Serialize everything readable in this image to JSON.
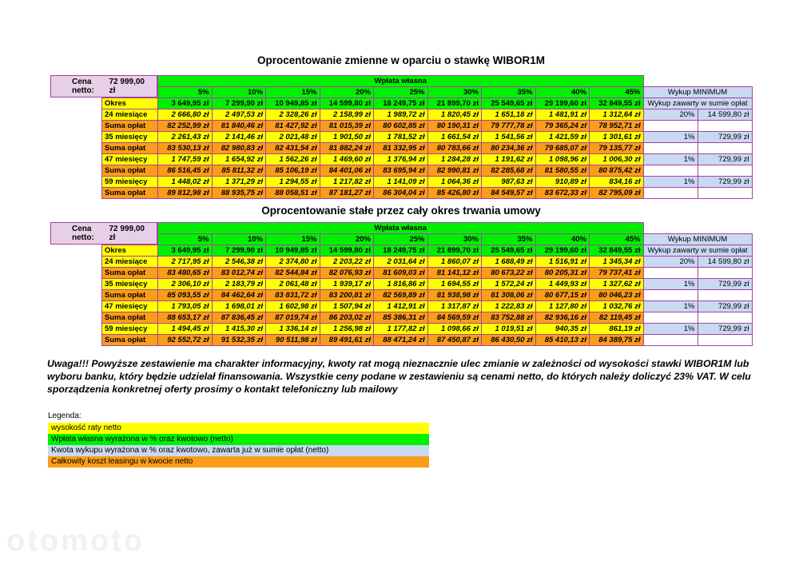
{
  "colors": {
    "green": "#00f000",
    "yellow": "#ffff00",
    "orange": "#fb9d18",
    "blue": "#c9d9f1",
    "pink": "#e8cfe8",
    "border": "#a442a4"
  },
  "tables": [
    {
      "title": "Oprocentowanie zmienne w oparciu o stawkę WIBOR1M",
      "cena_netto_label": "Cena netto:",
      "cena_netto_value": "72 999,00 zł",
      "wplata_wlasna_label": "Wpłata własna",
      "wykup_header": "Wykup MINIMUM",
      "wykup_subheader": "Wykup zawarty w sumie opłat",
      "percent_headers": [
        "5%",
        "10%",
        "15%",
        "20%",
        "25%",
        "30%",
        "35%",
        "40%",
        "45%"
      ],
      "okres_label": "Okres",
      "okres_values": [
        "3 649,95 zł",
        "7 299,90 zł",
        "10 949,85 zł",
        "14 599,80 zł",
        "18 249,75 zł",
        "21 899,70 zł",
        "25 549,65 zł",
        "29 199,60 zł",
        "32 849,55 zł"
      ],
      "rows": [
        {
          "type": "rate",
          "label": "24 miesiące",
          "values": [
            "2 666,80 zł",
            "2 497,53 zł",
            "2 328,26 zł",
            "2 158,99 zł",
            "1 989,72 zł",
            "1 820,45 zł",
            "1 651,18 zł",
            "1 481,91 zł",
            "1 312,64 zł"
          ],
          "wykup_pct": "20%",
          "wykup_amount": "14 599,80 zł"
        },
        {
          "type": "suma",
          "label": "Suma opłat",
          "values": [
            "82 252,99 zł",
            "81 840,46 zł",
            "81 427,92 zł",
            "81 015,39 zł",
            "80 602,85 zł",
            "80 190,31 zł",
            "79 777,78 zł",
            "79 365,24 zł",
            "78 952,71 zł"
          ]
        },
        {
          "type": "rate",
          "label": "35 miesięcy",
          "values": [
            "2 261,43 zł",
            "2 141,46 zł",
            "2 021,48 zł",
            "1 901,50 zł",
            "1 781,52 zł",
            "1 661,54 zł",
            "1 541,56 zł",
            "1 421,59 zł",
            "1 301,61 zł"
          ],
          "wykup_pct": "1%",
          "wykup_amount": "729,99 zł"
        },
        {
          "type": "suma",
          "label": "Suma opłat",
          "values": [
            "83 530,13 zł",
            "82 980,83 zł",
            "82 431,54 zł",
            "81 882,24 zł",
            "81 332,95 zł",
            "80 783,66 zł",
            "80 234,36 zł",
            "79 685,07 zł",
            "79 135,77 zł"
          ]
        },
        {
          "type": "rate",
          "label": "47 miesięcy",
          "values": [
            "1 747,59 zł",
            "1 654,92 zł",
            "1 562,26 zł",
            "1 469,60 zł",
            "1 376,94 zł",
            "1 284,28 zł",
            "1 191,62 zł",
            "1 098,96 zł",
            "1 006,30 zł"
          ],
          "wykup_pct": "1%",
          "wykup_amount": "729,99 zł"
        },
        {
          "type": "suma",
          "label": "Suma opłat",
          "values": [
            "86 516,45 zł",
            "85 811,32 zł",
            "85 106,19 zł",
            "84 401,06 zł",
            "83 695,94 zł",
            "82 990,81 zł",
            "82 285,68 zł",
            "81 580,55 zł",
            "80 875,42 zł"
          ]
        },
        {
          "type": "rate",
          "label": "59 miesięcy",
          "values": [
            "1 448,02 zł",
            "1 371,29 zł",
            "1 294,55 zł",
            "1 217,82 zł",
            "1 141,09 zł",
            "1 064,36 zł",
            "987,63 zł",
            "910,89 zł",
            "834,16 zł"
          ],
          "wykup_pct": "1%",
          "wykup_amount": "729,99 zł"
        },
        {
          "type": "suma",
          "label": "Suma opłat",
          "values": [
            "89 812,98 zł",
            "88 935,75 zł",
            "88 058,51 zł",
            "87 181,27 zł",
            "86 304,04 zł",
            "85 426,80 zł",
            "84 549,57 zł",
            "83 672,33 zł",
            "82 795,09 zł"
          ]
        }
      ]
    },
    {
      "title": "Oprocentowanie stałe przez cały okres trwania umowy",
      "cena_netto_label": "Cena netto:",
      "cena_netto_value": "72 999,00 zł",
      "wplata_wlasna_label": "Wpłata własna",
      "wykup_header": "Wykup MINIMUM",
      "wykup_subheader": "Wykup zawarty w sumie opłat",
      "percent_headers": [
        "5%",
        "10%",
        "15%",
        "20%",
        "25%",
        "30%",
        "35%",
        "40%",
        "45%"
      ],
      "okres_label": "Okres",
      "okres_values": [
        "3 649,95 zł",
        "7 299,90 zł",
        "10 949,85 zł",
        "14 599,80 zł",
        "18 249,75 zł",
        "21 899,70 zł",
        "25 549,65 zł",
        "29 199,60 zł",
        "32 849,55 zł"
      ],
      "rows": [
        {
          "type": "rate",
          "label": "24 miesiące",
          "values": [
            "2 717,95 zł",
            "2 546,38 zł",
            "2 374,80 zł",
            "2 203,22 zł",
            "2 031,64 zł",
            "1 860,07 zł",
            "1 688,49 zł",
            "1 516,91 zł",
            "1 345,34 zł"
          ],
          "wykup_pct": "20%",
          "wykup_amount": "14 599,80 zł"
        },
        {
          "type": "suma",
          "label": "Suma opłat",
          "values": [
            "83 480,65 zł",
            "83 012,74 zł",
            "82 544,84 zł",
            "82 076,93 zł",
            "81 609,03 zł",
            "81 141,12 zł",
            "80 673,22 zł",
            "80 205,31 zł",
            "79 737,41 zł"
          ]
        },
        {
          "type": "rate",
          "label": "35 miesięcy",
          "values": [
            "2 306,10 zł",
            "2 183,79 zł",
            "2 061,48 zł",
            "1 939,17 zł",
            "1 816,86 zł",
            "1 694,55 zł",
            "1 572,24 zł",
            "1 449,93 zł",
            "1 327,62 zł"
          ],
          "wykup_pct": "1%",
          "wykup_amount": "729,99 zł"
        },
        {
          "type": "suma",
          "label": "Suma opłat",
          "values": [
            "85 093,55 zł",
            "84 462,64 zł",
            "83 831,72 zł",
            "83 200,81 zł",
            "82 569,89 zł",
            "81 938,98 zł",
            "81 308,06 zł",
            "80 677,15 zł",
            "80 046,23 zł"
          ]
        },
        {
          "type": "rate",
          "label": "47 miesięcy",
          "values": [
            "1 793,05 zł",
            "1 698,01 zł",
            "1 602,98 zł",
            "1 507,94 zł",
            "1 412,91 zł",
            "1 317,87 zł",
            "1 222,83 zł",
            "1 127,80 zł",
            "1 032,76 zł"
          ],
          "wykup_pct": "1%",
          "wykup_amount": "729,99 zł"
        },
        {
          "type": "suma",
          "label": "Suma opłat",
          "values": [
            "88 653,17 zł",
            "87 836,45 zł",
            "87 019,74 zł",
            "86 203,02 zł",
            "85 386,31 zł",
            "84 569,59 zł",
            "83 752,88 zł",
            "82 936,16 zł",
            "82 119,45 zł"
          ]
        },
        {
          "type": "rate",
          "label": "59 miesięcy",
          "values": [
            "1 494,45 zł",
            "1 415,30 zł",
            "1 336,14 zł",
            "1 256,98 zł",
            "1 177,82 zł",
            "1 098,66 zł",
            "1 019,51 zł",
            "940,35 zł",
            "861,19 zł"
          ],
          "wykup_pct": "1%",
          "wykup_amount": "729,99 zł"
        },
        {
          "type": "suma",
          "label": "Suma opłat",
          "values": [
            "92 552,72 zł",
            "91 532,35 zł",
            "90 511,98 zł",
            "89 491,61 zł",
            "88 471,24 zł",
            "87 450,87 zł",
            "86 430,50 zł",
            "85 410,13 zł",
            "84 389,75 zł"
          ]
        }
      ]
    }
  ],
  "note": {
    "text": "Uwaga!!! Powyższe zestawienie ma charakter informacyjny, kwoty rat mogą nieznacznie ulec zmianie w zależności od wysokości stawki WIBOR1M lub wyboru banku, który będzie udzielał finansowania. Wszystkie ceny podane w zestawieniu są cenami netto, do których należy doliczyć 23% VAT. W celu sporządzenia konkretnej oferty prosimy o kontakt telefoniczny lub mailowy"
  },
  "legend": {
    "title": "Legenda:",
    "items": [
      {
        "label": "wysokość raty netto",
        "color_key": "yellow"
      },
      {
        "label": "Wpłata własna wyrażona w % oraz kwotowo (netto)",
        "color_key": "green"
      },
      {
        "label": "Kwota wykupu wyrażona w % oraz kwotowo, zawarta już w sumie opłat (netto)",
        "color_key": "blue"
      },
      {
        "label": "Całkowity koszt leasingu w kwocie netto",
        "color_key": "orange"
      }
    ]
  },
  "watermark": {
    "text": "otomoto"
  }
}
